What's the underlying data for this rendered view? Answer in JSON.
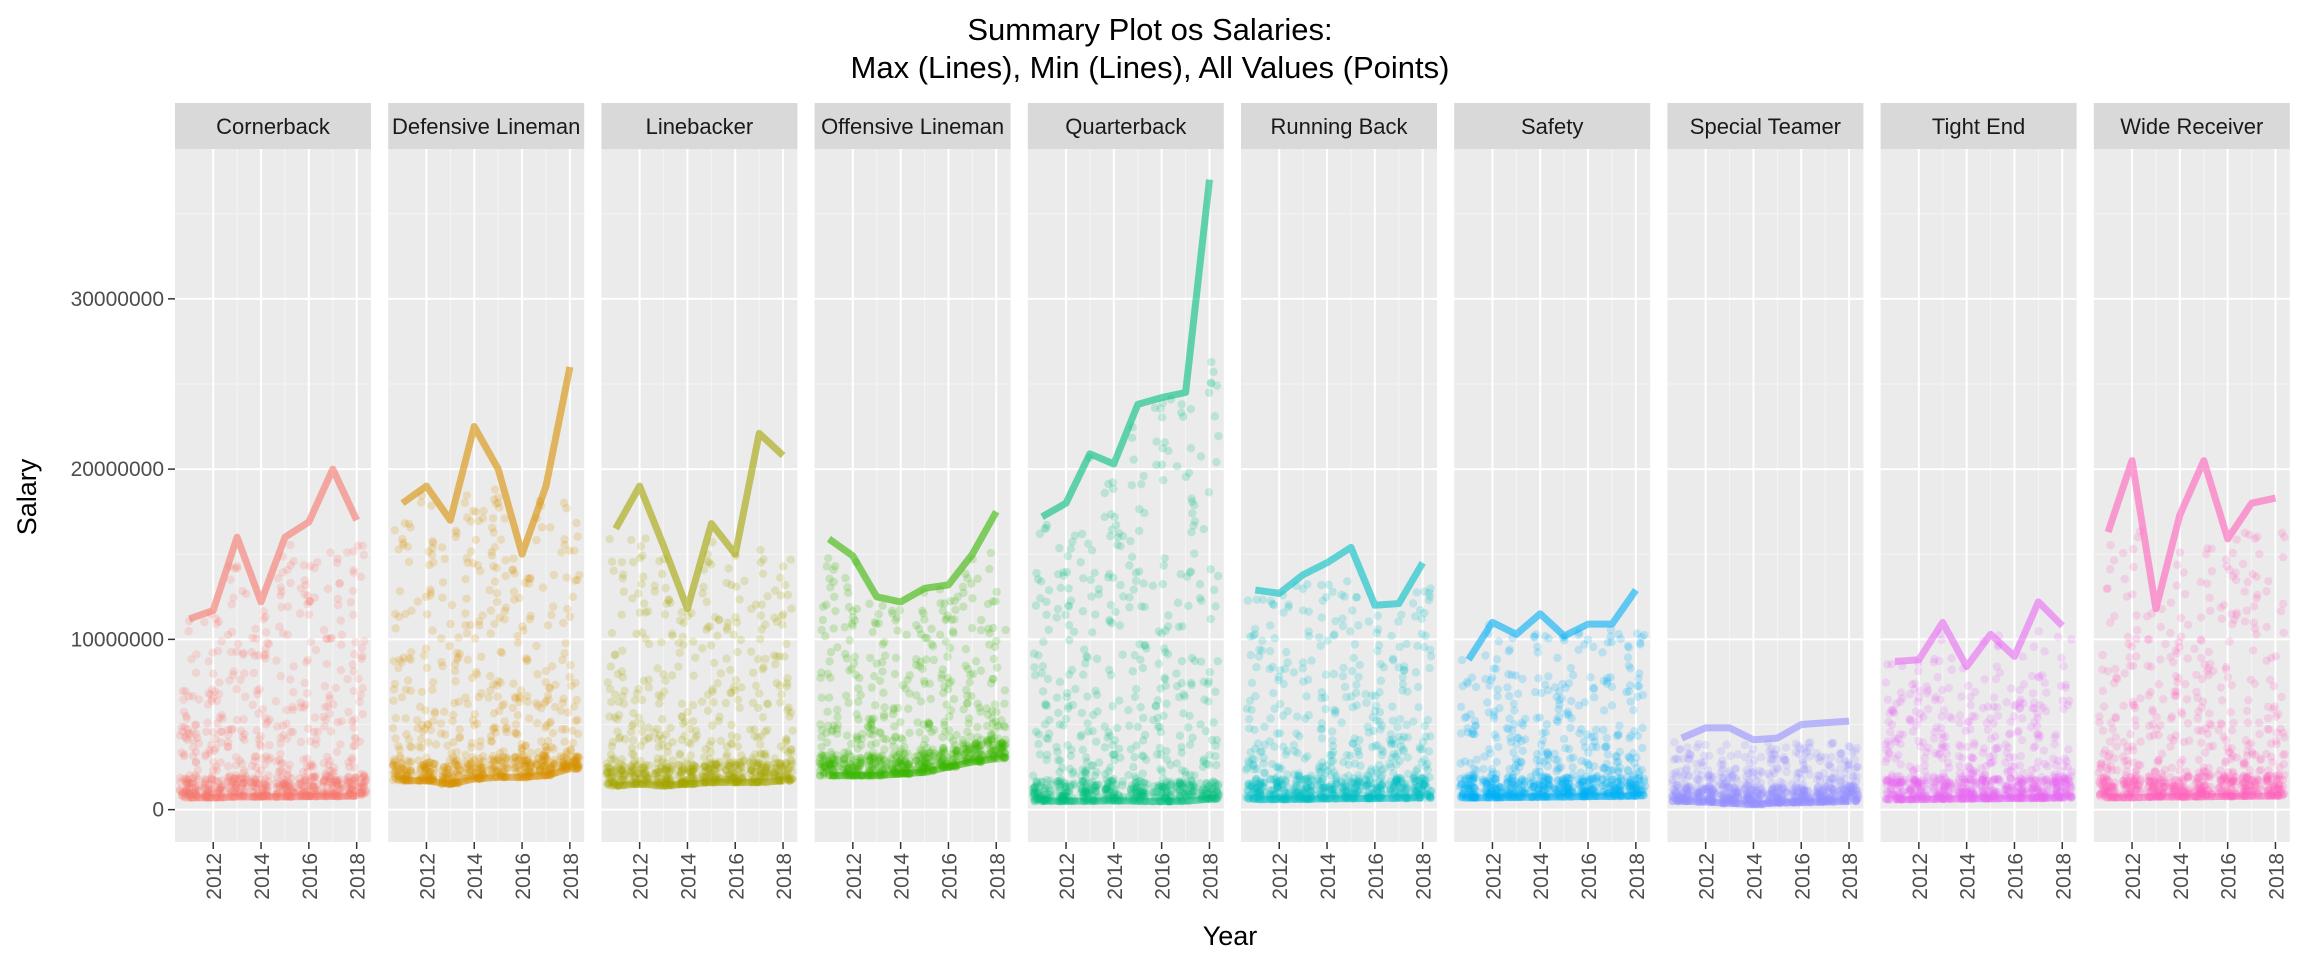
{
  "chart_data": {
    "type": "line",
    "title": "Summary Plot os Salaries:",
    "subtitle": "Max (Lines), Min (Lines), All Values (Points)",
    "xlabel": "Year",
    "ylabel": "Salary",
    "x_ticks": [
      2012,
      2014,
      2016,
      2018
    ],
    "y_ticks": [
      0,
      10000000,
      20000000,
      30000000
    ],
    "y_tick_labels": [
      "0",
      "10000000",
      "20000000",
      "30000000"
    ],
    "xlim": [
      2010.4,
      2018.6
    ],
    "ylim": [
      -1900000,
      38800000
    ],
    "grid": true,
    "legend": "none",
    "facets": [
      "Cornerback",
      "Defensive Lineman",
      "Linebacker",
      "Offensive Lineman",
      "Quarterback",
      "Running Back",
      "Safety",
      "Special Teamer",
      "Tight End",
      "Wide Receiver"
    ],
    "years": [
      2011,
      2012,
      2013,
      2014,
      2015,
      2016,
      2017,
      2018
    ],
    "series": [
      {
        "name": "Cornerback",
        "color": "#F8766D",
        "max": [
          11200000,
          11700000,
          16000000,
          12200000,
          16000000,
          16900000,
          20000000,
          17000000
        ],
        "min": [
          700000,
          700000,
          750000,
          750000,
          750000,
          770000,
          780000,
          800000
        ],
        "point_range": [
          700000,
          15700000
        ]
      },
      {
        "name": "Defensive Lineman",
        "color": "#D89000",
        "max": [
          18000000,
          19000000,
          17000000,
          22500000,
          20000000,
          15000000,
          19000000,
          26000000
        ],
        "min": [
          1700000,
          1700000,
          1500000,
          1800000,
          1900000,
          1900000,
          2000000,
          2400000
        ],
        "point_range": [
          1500000,
          19000000
        ]
      },
      {
        "name": "Linebacker",
        "color": "#A3A500",
        "max": [
          16500000,
          19000000,
          15500000,
          11800000,
          16800000,
          15000000,
          22100000,
          20800000
        ],
        "min": [
          1400000,
          1500000,
          1400000,
          1500000,
          1600000,
          1600000,
          1600000,
          1700000
        ],
        "point_range": [
          1400000,
          16000000
        ]
      },
      {
        "name": "Offensive Lineman",
        "color": "#39B600",
        "max": [
          15900000,
          14900000,
          12500000,
          12200000,
          13000000,
          13200000,
          15000000,
          17500000
        ],
        "min": [
          2000000,
          2000000,
          2000000,
          2100000,
          2200000,
          2500000,
          2800000,
          3000000
        ],
        "point_range": [
          2000000,
          15500000
        ]
      },
      {
        "name": "Quarterback",
        "color": "#00BF7D",
        "max": [
          17200000,
          18000000,
          20900000,
          20300000,
          23800000,
          24200000,
          24500000,
          37000000
        ],
        "min": [
          500000,
          500000,
          500000,
          520000,
          500000,
          480000,
          500000,
          620000
        ],
        "point_range": [
          400000,
          26500000
        ]
      },
      {
        "name": "Running Back",
        "color": "#00BFC4",
        "max": [
          12900000,
          12700000,
          13800000,
          14500000,
          15400000,
          12000000,
          12100000,
          14500000
        ],
        "min": [
          600000,
          600000,
          620000,
          640000,
          650000,
          660000,
          670000,
          700000
        ],
        "point_range": [
          600000,
          13500000
        ]
      },
      {
        "name": "Safety",
        "color": "#00B0F6",
        "max": [
          8800000,
          11000000,
          10300000,
          11500000,
          10200000,
          10900000,
          10900000,
          12900000
        ],
        "min": [
          700000,
          700000,
          720000,
          740000,
          750000,
          770000,
          780000,
          800000
        ],
        "point_range": [
          700000,
          11000000
        ]
      },
      {
        "name": "Special Teamer",
        "color": "#9590FF",
        "max": [
          4200000,
          4800000,
          4800000,
          4100000,
          4200000,
          5000000,
          5100000,
          5200000
        ],
        "min": [
          500000,
          450000,
          380000,
          300000,
          400000,
          420000,
          450000,
          500000
        ],
        "point_range": [
          300000,
          4000000
        ]
      },
      {
        "name": "Tight End",
        "color": "#E76BF3",
        "max": [
          8700000,
          8800000,
          11000000,
          8400000,
          10300000,
          9000000,
          12200000,
          10800000
        ],
        "min": [
          600000,
          600000,
          620000,
          640000,
          650000,
          660000,
          670000,
          700000
        ],
        "point_range": [
          600000,
          10500000
        ]
      },
      {
        "name": "Wide Receiver",
        "color": "#FF62BC",
        "max": [
          16300000,
          20500000,
          11800000,
          17300000,
          20500000,
          15900000,
          18000000,
          18300000
        ],
        "min": [
          700000,
          700000,
          750000,
          750000,
          760000,
          780000,
          790000,
          800000
        ],
        "point_range": [
          700000,
          16500000
        ]
      }
    ]
  }
}
